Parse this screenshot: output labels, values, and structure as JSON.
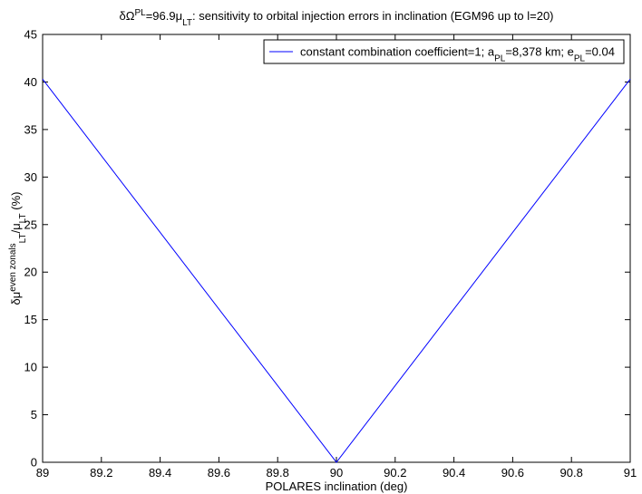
{
  "chart_data": {
    "type": "line",
    "title": [
      {
        "text": "δΩ"
      },
      {
        "text": "PL",
        "shift": "super"
      },
      {
        "text": "=96.9μ"
      },
      {
        "text": "LT",
        "shift": "sub"
      },
      {
        "text": ": sensitivity to orbital injection errors in inclination (EGM96 up to l=20)"
      }
    ],
    "xlabel": [
      {
        "text": "POLARES inclination (deg)"
      }
    ],
    "ylabel": [
      {
        "text": "δμ"
      },
      {
        "text": "even zonals",
        "shift": "super"
      },
      {
        "text": "LT",
        "shift": "sub"
      },
      {
        "text": "/μ"
      },
      {
        "text": "LT",
        "shift": "sub"
      },
      {
        "text": " (%)"
      }
    ],
    "x": [
      89,
      90,
      91
    ],
    "series": [
      {
        "name": [
          {
            "text": "constant combination coefficient=1; a"
          },
          {
            "text": "PL",
            "shift": "sub"
          },
          {
            "text": "=8,378 km; e"
          },
          {
            "text": "PL",
            "shift": "sub"
          },
          {
            "text": "=0.04"
          }
        ],
        "color": "#0000ff",
        "values": [
          40.3,
          0,
          40.3
        ]
      }
    ],
    "xlim": [
      89,
      91
    ],
    "xticks": [
      89,
      89.2,
      89.4,
      89.6,
      89.8,
      90,
      90.2,
      90.4,
      90.6,
      90.8,
      91
    ],
    "ylim": [
      0,
      45
    ],
    "yticks": [
      0,
      5,
      10,
      15,
      20,
      25,
      30,
      35,
      40,
      45
    ],
    "grid": false,
    "legend": "upper-right"
  }
}
